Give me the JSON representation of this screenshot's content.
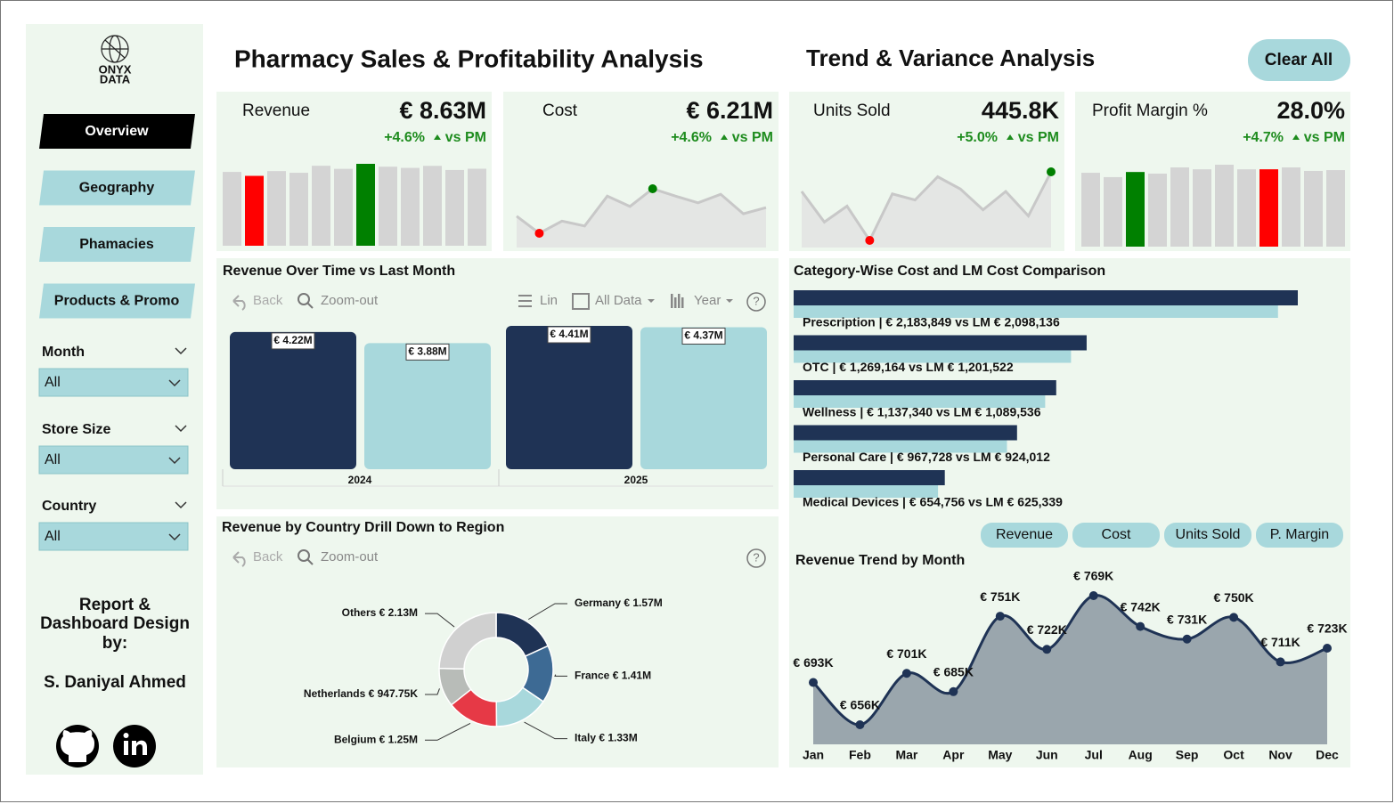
{
  "sidebar": {
    "logo": [
      "ONYX",
      "DATA"
    ],
    "nav": [
      "Overview",
      "Geography",
      "Phamacies",
      "Products & Promo"
    ],
    "filters": [
      {
        "label": "Month",
        "value": "All"
      },
      {
        "label": "Store Size",
        "value": "All"
      },
      {
        "label": "Country",
        "value": "All"
      }
    ],
    "credit": [
      "Report &",
      "Dashboard Design",
      "by:"
    ],
    "author": "S. Daniyal Ahmed"
  },
  "header": {
    "title": "Pharmacy Sales & Profitability Analysis",
    "subtitle": "Trend & Variance Analysis",
    "button": "Clear All"
  },
  "kpis": [
    {
      "label": "Revenue",
      "value": "€ 8.63M",
      "change": "+4.6%",
      "compare": "vs PM"
    },
    {
      "label": "Cost",
      "value": "€ 6.21M",
      "change": "+4.6%",
      "compare": "vs PM"
    },
    {
      "label": "Units Sold",
      "value": "445.8K",
      "change": "+5.0%",
      "compare": "vs PM"
    },
    {
      "label": "Profit Margin %",
      "value": "28.0%",
      "change": "+4.7%",
      "compare": "vs PM"
    }
  ],
  "toolbar": {
    "back": "Back",
    "zoom": "Zoom-out",
    "lin": "Lin",
    "all": "All Data",
    "year": "Year",
    "help": "?"
  },
  "buttons": [
    "Revenue",
    "Cost",
    "Units Sold",
    "P. Margin"
  ],
  "chart_data": [
    {
      "type": "bar",
      "values": [
        693,
        656,
        701,
        685,
        751,
        722,
        769,
        742,
        731,
        750,
        711,
        723
      ],
      "colors": [
        "#d4d4d4",
        "#ff0000",
        "#d4d4d4",
        "#d4d4d4",
        "#d4d4d4",
        "#d4d4d4",
        "#008000",
        "#d4d4d4",
        "#d4d4d4",
        "#d4d4d4",
        "#d4d4d4",
        "#d4d4d4"
      ]
    },
    {
      "type": "line",
      "values": [
        500,
        472,
        492,
        484,
        533,
        516,
        545,
        533,
        522,
        536,
        504,
        514
      ],
      "color": "#c8c8c8",
      "min_color": "#ff0000",
      "max_color": "#008000"
    },
    {
      "type": "line",
      "values": [
        38.0,
        35.5,
        36.8,
        34.0,
        37.8,
        37.3,
        39.2,
        38.2,
        36.5,
        38.0,
        36.0,
        39.6
      ],
      "color": "#c8c8c8",
      "min_color": "#ff0000",
      "max_color": "#008000"
    },
    {
      "type": "bar",
      "values": [
        27.4,
        25.8,
        27.7,
        27.1,
        29.4,
        28.7,
        30.4,
        28.7,
        28.7,
        29.4,
        28.1,
        28.4
      ],
      "colors": [
        "#d4d4d4",
        "#d4d4d4",
        "#008000",
        "#d4d4d4",
        "#d4d4d4",
        "#d4d4d4",
        "#d4d4d4",
        "#d4d4d4",
        "#ff0000",
        "#d4d4d4",
        "#d4d4d4",
        "#d4d4d4"
      ]
    },
    {
      "type": "grouped",
      "title": "Revenue Over Time vs Last Month",
      "categories": [
        "2024",
        "2025"
      ],
      "series": [
        {
          "color": "#1f3355",
          "values": [
            4.22,
            4.41
          ],
          "value_labels": [
            "€ 4.22M",
            "€ 4.41M"
          ]
        },
        {
          "color": "#a8d8dc",
          "values": [
            3.88,
            4.37
          ],
          "value_labels": [
            "€ 3.88M",
            "€ 4.37M"
          ]
        }
      ]
    },
    {
      "type": "barh",
      "title": "Category-Wise Cost and LM Cost Comparison",
      "categories": [
        "Prescription | € 2,183,849 vs LM € 2,098,136",
        "OTC | € 1,269,164 vs LM € 1,201,522",
        "Wellness | € 1,137,340 vs LM € 1,089,536",
        "Personal Care | € 967,728 vs LM € 924,012",
        "Medical Devices | € 654,756 vs LM € 625,339"
      ],
      "series": [
        {
          "color": "#1f3355",
          "values": [
            2183849,
            1269164,
            1137340,
            967728,
            654756
          ]
        },
        {
          "color": "#a8d8dc",
          "values": [
            2098136,
            1201522,
            1089536,
            924012,
            625339
          ]
        }
      ]
    },
    {
      "type": "donut",
      "title": "Revenue by Country Drill Down to Region",
      "categories": [
        "Germany",
        "France",
        "Italy",
        "Belgium",
        "Netherlands",
        "Others"
      ],
      "values": [
        1.57,
        1.41,
        1.33,
        1.25,
        0.94775,
        2.13
      ],
      "value_labels": [
        "€ 1.57M",
        "€ 1.41M",
        "€ 1.33M",
        "€ 1.25M",
        "€ 947.75K",
        "€ 2.13M"
      ],
      "colors": [
        "#1f3355",
        "#3d6a94",
        "#a8d8dc",
        "#e63946",
        "#b8bcb8",
        "#d0d0d0"
      ]
    },
    {
      "type": "area",
      "title": "Revenue Trend by Month",
      "categories": [
        "Jan",
        "Feb",
        "Mar",
        "Apr",
        "May",
        "Jun",
        "Jul",
        "Aug",
        "Sep",
        "Oct",
        "Nov",
        "Dec"
      ],
      "values": [
        693,
        656,
        701,
        685,
        751,
        722,
        769,
        742,
        731,
        750,
        711,
        723
      ],
      "value_labels": [
        "€ 693K",
        "€ 656K",
        "€ 701K",
        "€ 685K",
        "€ 751K",
        "€ 722K",
        "€ 769K",
        "€ 742K",
        "€ 731K",
        "€ 750K",
        "€ 711K",
        "€ 723K"
      ],
      "color": "#1f3355",
      "fill": "#9aa6ad"
    }
  ]
}
